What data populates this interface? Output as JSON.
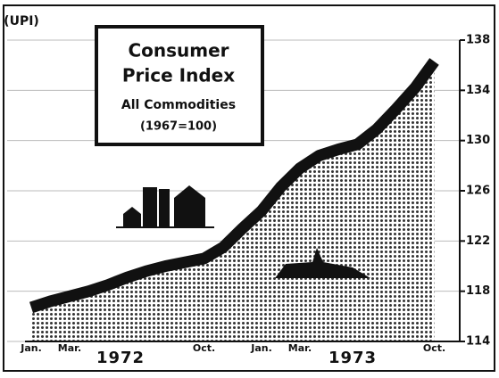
{
  "chart_data": {
    "type": "area",
    "logo": "(UPI)",
    "title": [
      "Consumer",
      "Price Index"
    ],
    "subtitle": "All Commodities",
    "note": "(1967=100)",
    "categories": [
      "Jan.",
      null,
      "Mar.",
      null,
      null,
      null,
      null,
      null,
      null,
      "Oct.",
      null,
      null,
      "Jan.",
      null,
      "Mar.",
      null,
      null,
      null,
      null,
      null,
      null,
      "Oct."
    ],
    "year_labels": [
      "1972",
      "1973"
    ],
    "values": [
      116.7,
      117.2,
      117.6,
      118.0,
      118.5,
      119.1,
      119.6,
      120.0,
      120.3,
      120.6,
      121.5,
      123.0,
      124.4,
      126.3,
      127.8,
      128.8,
      129.3,
      129.7,
      130.9,
      132.5,
      134.2,
      136.3
    ],
    "color": "#111111",
    "ylim": [
      114,
      138
    ],
    "yticks": [
      114,
      118,
      122,
      126,
      130,
      134,
      138
    ],
    "grid": true
  }
}
